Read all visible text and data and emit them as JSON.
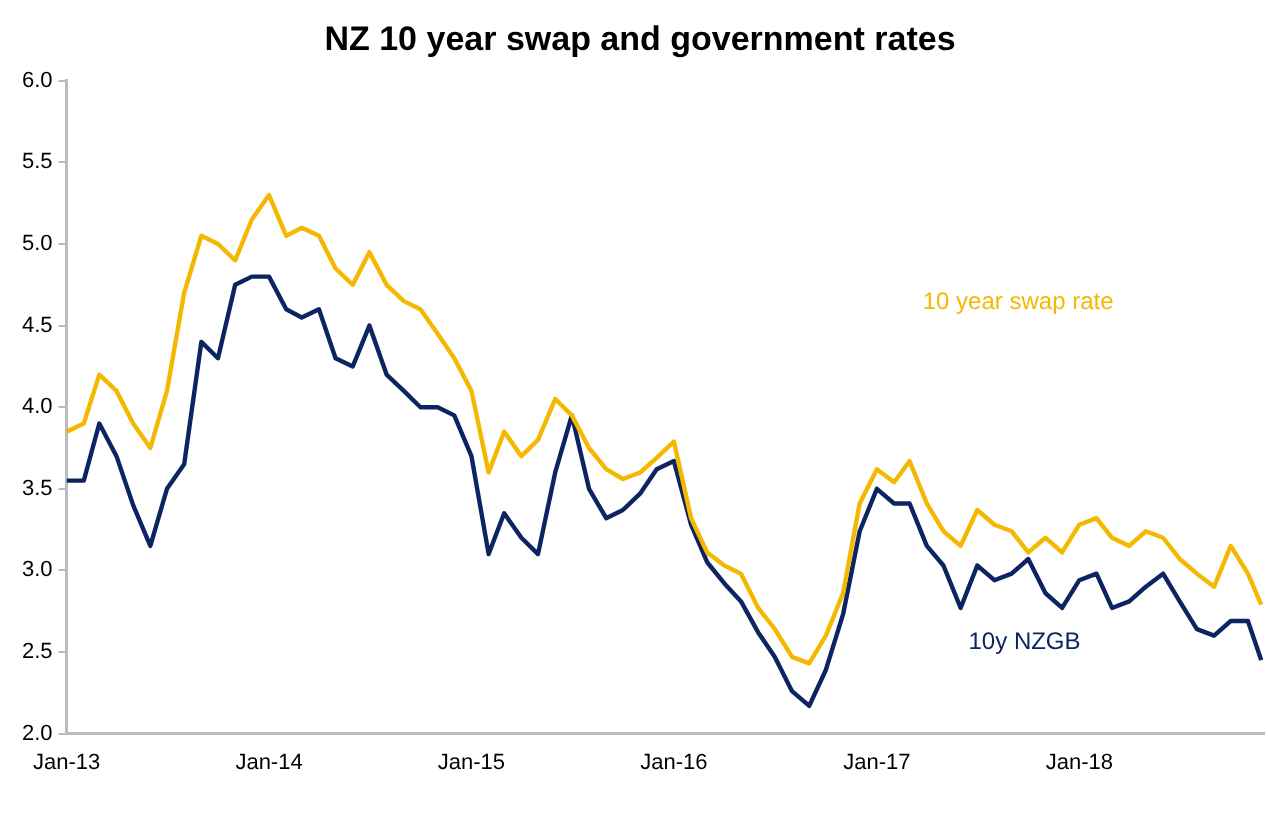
{
  "chart_data": {
    "type": "line",
    "title": "NZ 10 year swap and government rates",
    "x": [
      "2013-01-01",
      "2013-02-01",
      "2013-03-01",
      "2013-04-01",
      "2013-05-01",
      "2013-06-01",
      "2013-07-01",
      "2013-08-01",
      "2013-09-01",
      "2013-10-01",
      "2013-11-01",
      "2013-12-01",
      "2014-01-01",
      "2014-02-01",
      "2014-03-01",
      "2014-04-01",
      "2014-05-01",
      "2014-06-01",
      "2014-07-01",
      "2014-08-01",
      "2014-09-01",
      "2014-10-01",
      "2014-11-01",
      "2014-12-01",
      "2015-01-01",
      "2015-02-01",
      "2015-03-01",
      "2015-04-01",
      "2015-05-01",
      "2015-06-01",
      "2015-07-01",
      "2015-08-01",
      "2015-09-01",
      "2015-10-01",
      "2015-11-01",
      "2015-12-01",
      "2016-01-01",
      "2016-02-01",
      "2016-03-01",
      "2016-04-01",
      "2016-05-01",
      "2016-06-01",
      "2016-07-01",
      "2016-08-01",
      "2016-09-01",
      "2016-10-01",
      "2016-11-01",
      "2016-12-01",
      "2017-01-01",
      "2017-02-01",
      "2017-03-01",
      "2017-04-01",
      "2017-05-01",
      "2017-06-01",
      "2017-07-01",
      "2017-08-01",
      "2017-09-01",
      "2017-10-01",
      "2017-11-01",
      "2017-12-01",
      "2018-01-01",
      "2018-02-01",
      "2018-03-01",
      "2018-04-01",
      "2018-05-01",
      "2018-06-01",
      "2018-07-01",
      "2018-08-01",
      "2018-09-01",
      "2018-10-01",
      "2018-11-01",
      "2018-11-25"
    ],
    "series": [
      {
        "name": "10 year swap rate",
        "color": "#f5b800",
        "values": [
          3.85,
          3.9,
          4.2,
          4.1,
          3.9,
          3.75,
          4.1,
          4.7,
          5.05,
          5.0,
          4.9,
          5.15,
          5.3,
          5.05,
          5.1,
          5.05,
          4.85,
          4.75,
          4.95,
          4.75,
          4.65,
          4.6,
          4.45,
          4.3,
          4.1,
          3.6,
          3.85,
          3.7,
          3.8,
          4.05,
          3.95,
          3.75,
          3.62,
          3.56,
          3.6,
          3.69,
          3.79,
          3.32,
          3.11,
          3.03,
          2.98,
          2.77,
          2.64,
          2.47,
          2.43,
          2.6,
          2.86,
          3.41,
          3.62,
          3.54,
          3.67,
          3.41,
          3.24,
          3.15,
          3.37,
          3.28,
          3.24,
          3.11,
          3.2,
          3.11,
          3.28,
          3.32,
          3.2,
          3.15,
          3.24,
          3.2,
          3.07,
          2.98,
          2.9,
          3.15,
          2.98,
          2.79
        ]
      },
      {
        "name": "10y NZGB",
        "color": "#0d2463",
        "values": [
          3.55,
          3.55,
          3.9,
          3.7,
          3.4,
          3.15,
          3.5,
          3.65,
          4.4,
          4.3,
          4.75,
          4.8,
          4.8,
          4.6,
          4.55,
          4.6,
          4.3,
          4.25,
          4.5,
          4.2,
          4.1,
          4.0,
          4.0,
          3.95,
          3.7,
          3.1,
          3.35,
          3.2,
          3.1,
          3.6,
          3.95,
          3.5,
          3.32,
          3.37,
          3.47,
          3.62,
          3.67,
          3.28,
          3.05,
          2.92,
          2.81,
          2.62,
          2.47,
          2.26,
          2.17,
          2.39,
          2.73,
          3.24,
          3.5,
          3.41,
          3.41,
          3.15,
          3.03,
          2.77,
          3.03,
          2.94,
          2.98,
          3.07,
          2.86,
          2.77,
          2.94,
          2.98,
          2.77,
          2.81,
          2.9,
          2.98,
          2.81,
          2.64,
          2.6,
          2.69,
          2.69,
          2.45
        ]
      }
    ],
    "xlim": [
      "2013-01-01",
      "2018-11-30"
    ],
    "xticks": [
      {
        "value": "2013-01-01",
        "label": "Jan-13"
      },
      {
        "value": "2014-01-01",
        "label": "Jan-14"
      },
      {
        "value": "2015-01-01",
        "label": "Jan-15"
      },
      {
        "value": "2016-01-01",
        "label": "Jan-16"
      },
      {
        "value": "2017-01-01",
        "label": "Jan-17"
      },
      {
        "value": "2018-01-01",
        "label": "Jan-18"
      }
    ],
    "ylim": [
      2.0,
      6.0
    ],
    "yticks": [
      {
        "value": 2,
        "label": "2.0"
      },
      {
        "value": 2.5,
        "label": "2.5"
      },
      {
        "value": 3,
        "label": "3.0"
      },
      {
        "value": 3.5,
        "label": "3.5"
      },
      {
        "value": 4,
        "label": "4.0"
      },
      {
        "value": 4.5,
        "label": "4.5"
      },
      {
        "value": 5,
        "label": "5.0"
      },
      {
        "value": 5.5,
        "label": "5.5"
      },
      {
        "value": 6,
        "label": "6.0"
      }
    ],
    "grid": false,
    "legend": false,
    "marker": "none",
    "line_style": "solid"
  }
}
